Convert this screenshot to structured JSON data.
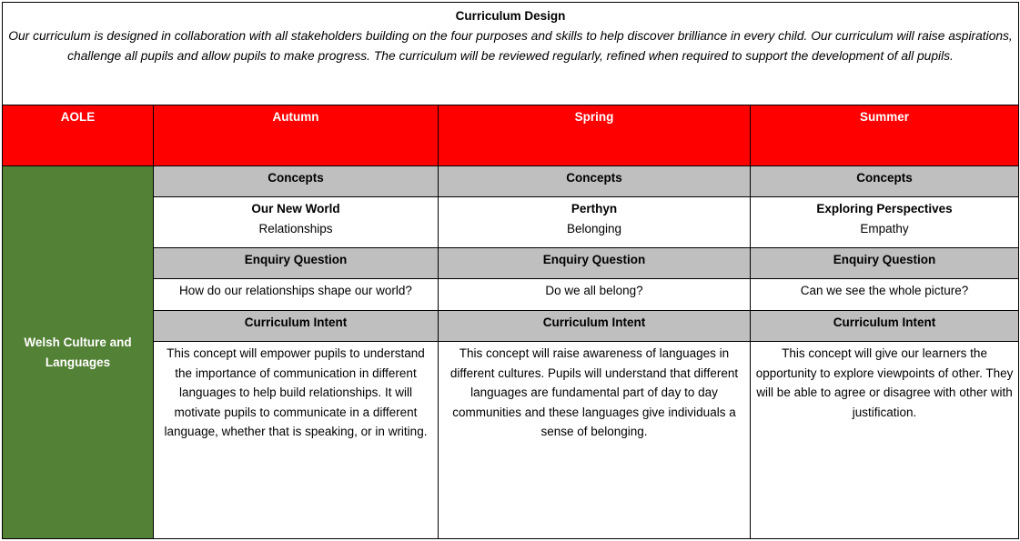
{
  "title": "Curriculum Design",
  "intro": "Our curriculum is designed in collaboration with all stakeholders building on the four purposes and skills to help discover brilliance in every child. Our curriculum will raise aspirations, challenge all pupils and allow pupils to make progress. The curriculum will be reviewed regularly, refined when required to support the development of all pupils.",
  "colors": {
    "header": "#ff0000",
    "aole": "#538135",
    "section": "#bfbfbf"
  },
  "headers": [
    "AOLE",
    "Autumn",
    "Spring",
    "Summer"
  ],
  "aole": "Welsh Culture and Languages",
  "labels": {
    "concepts": "Concepts",
    "enquiry": "Enquiry Question",
    "intent": "Curriculum Intent"
  },
  "terms": [
    {
      "concept_title": "Our New World",
      "concept": "Relationships",
      "question": "How do our relationships shape our world?",
      "intent": "This concept will empower pupils to understand the importance of communication in different languages to help build relationships. It will motivate pupils to communicate in a different language, whether that is speaking, or in writing."
    },
    {
      "concept_title": "Perthyn",
      "concept": "Belonging",
      "question": "Do we all belong?",
      "intent": "This concept will raise awareness of languages in different cultures. Pupils will understand that different languages are fundamental part of day to day communities and these languages give individuals a sense of belonging."
    },
    {
      "concept_title": "Exploring Perspectives",
      "concept": "Empathy",
      "question": "Can we see the whole picture?",
      "intent": "This concept will give our learners the opportunity to explore viewpoints of other. They will be able to agree or disagree with other with justification."
    }
  ]
}
